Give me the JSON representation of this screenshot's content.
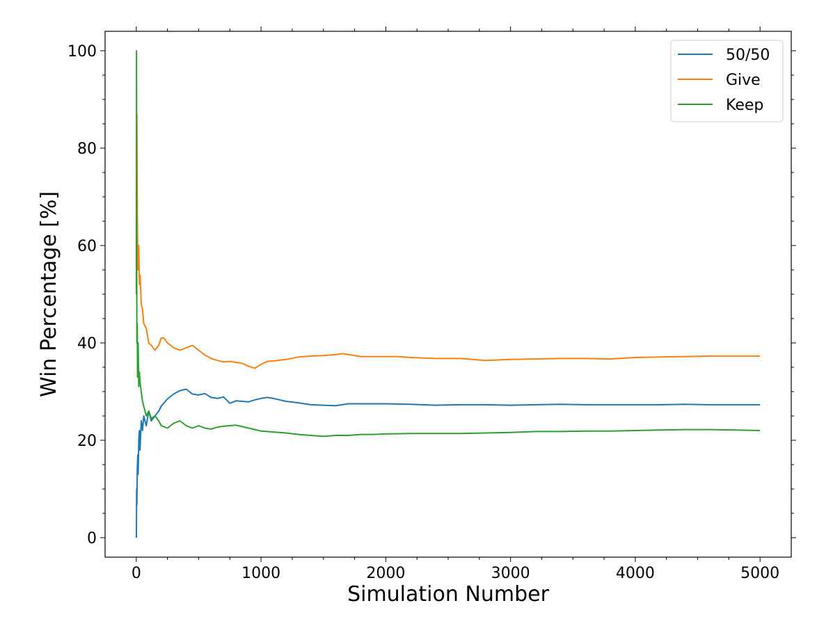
{
  "chart_data": {
    "type": "line",
    "title": "",
    "xlabel": "Simulation Number",
    "ylabel": "Win Percentage [%]",
    "xlim": [
      -250,
      5250
    ],
    "ylim": [
      -4,
      104
    ],
    "x_ticks": [
      0,
      1000,
      2000,
      3000,
      4000,
      5000
    ],
    "y_ticks": [
      0,
      20,
      40,
      60,
      80,
      100
    ],
    "grid": false,
    "legend_position": "top-right",
    "series": [
      {
        "name": "50/50",
        "color": "#1f77b4",
        "x": [
          1,
          3,
          5,
          8,
          12,
          15,
          20,
          25,
          30,
          40,
          50,
          60,
          80,
          100,
          120,
          150,
          180,
          200,
          250,
          300,
          350,
          400,
          450,
          500,
          550,
          600,
          650,
          700,
          750,
          800,
          850,
          900,
          950,
          1000,
          1050,
          1100,
          1200,
          1300,
          1400,
          1500,
          1600,
          1700,
          1800,
          1900,
          2000,
          2200,
          2400,
          2600,
          2800,
          3000,
          3200,
          3400,
          3600,
          3800,
          4000,
          4200,
          4400,
          4600,
          4800,
          5000
        ],
        "y": [
          0,
          10,
          6.7,
          14,
          17,
          13,
          20,
          22,
          18,
          24,
          22,
          25,
          23,
          26,
          24,
          25,
          26,
          27,
          28.5,
          29.5,
          30.2,
          30.5,
          29.5,
          29.3,
          29.6,
          28.8,
          28.6,
          28.9,
          27.6,
          28.1,
          28.0,
          27.9,
          28.3,
          28.6,
          28.8,
          28.6,
          28.0,
          27.7,
          27.3,
          27.2,
          27.1,
          27.5,
          27.5,
          27.5,
          27.5,
          27.4,
          27.2,
          27.3,
          27.3,
          27.2,
          27.3,
          27.4,
          27.3,
          27.3,
          27.3,
          27.3,
          27.4,
          27.3,
          27.3,
          27.3
        ]
      },
      {
        "name": "Give",
        "color": "#ff7f0e",
        "x": [
          1,
          3,
          5,
          8,
          10,
          12,
          15,
          20,
          25,
          30,
          40,
          50,
          60,
          80,
          100,
          120,
          150,
          180,
          200,
          220,
          250,
          300,
          350,
          400,
          450,
          500,
          550,
          600,
          650,
          700,
          750,
          800,
          850,
          900,
          950,
          1000,
          1050,
          1100,
          1200,
          1300,
          1400,
          1500,
          1600,
          1650,
          1700,
          1800,
          1900,
          2000,
          2100,
          2200,
          2400,
          2600,
          2800,
          3000,
          3200,
          3400,
          3600,
          3800,
          4000,
          4200,
          4400,
          4600,
          4800,
          5000
        ],
        "y": [
          50,
          66,
          87,
          70,
          62,
          58,
          55,
          60,
          52,
          54,
          48,
          47,
          44,
          43,
          40,
          39.5,
          38.5,
          39.5,
          41,
          41,
          40,
          39,
          38.5,
          39,
          39.5,
          38.5,
          37.5,
          36.8,
          36.4,
          36.1,
          36.2,
          36,
          35.8,
          35.2,
          34.8,
          35.6,
          36.2,
          36.3,
          36.6,
          37.1,
          37.3,
          37.4,
          37.6,
          37.8,
          37.6,
          37.2,
          37.2,
          37.2,
          37.2,
          37,
          36.8,
          36.8,
          36.4,
          36.6,
          36.7,
          36.8,
          36.8,
          36.7,
          37,
          37.1,
          37.2,
          37.3,
          37.3,
          37.3
        ]
      },
      {
        "name": "Keep",
        "color": "#2ca02c",
        "x": [
          1,
          2,
          3,
          5,
          8,
          10,
          15,
          20,
          25,
          30,
          40,
          50,
          60,
          80,
          100,
          120,
          150,
          180,
          200,
          250,
          300,
          350,
          400,
          450,
          500,
          550,
          600,
          650,
          700,
          750,
          800,
          850,
          900,
          950,
          1000,
          1100,
          1200,
          1300,
          1400,
          1500,
          1600,
          1700,
          1800,
          1900,
          2000,
          2200,
          2400,
          2600,
          2800,
          3000,
          3200,
          3400,
          3600,
          3800,
          4000,
          4200,
          4400,
          4600,
          4800,
          5000
        ],
        "y": [
          50,
          100,
          66,
          40,
          44,
          33,
          40,
          31,
          34,
          32,
          30,
          28,
          27,
          25,
          26,
          24.5,
          25,
          24,
          23,
          22.5,
          23.5,
          24,
          23,
          22.5,
          23,
          22.5,
          22.3,
          22.7,
          22.9,
          23,
          23.1,
          22.8,
          22.5,
          22.2,
          21.9,
          21.7,
          21.5,
          21.2,
          21,
          20.8,
          21,
          21,
          21.2,
          21.2,
          21.3,
          21.4,
          21.4,
          21.4,
          21.5,
          21.6,
          21.8,
          21.8,
          21.9,
          21.9,
          22,
          22.1,
          22.2,
          22.2,
          22.1,
          22
        ]
      }
    ]
  }
}
